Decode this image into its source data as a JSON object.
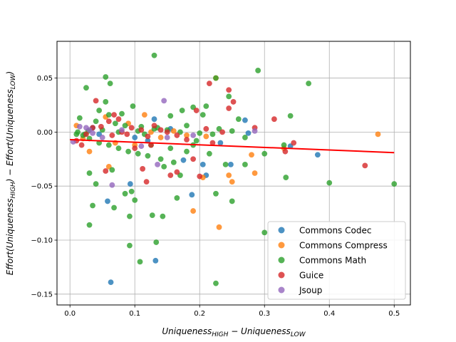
{
  "chart_data": {
    "type": "scatter",
    "title": "",
    "xlabel": {
      "base": "Uniqueness",
      "sub1": "HIGH",
      "mid": " − Uniqueness",
      "sub2": "LOW"
    },
    "ylabel": {
      "p1": "Effort(Uniqueness",
      "sub1": "HIGH",
      "p2": ") − Effort(Uniqueness",
      "sub2": "LOW",
      "p3": ")"
    },
    "xlim": [
      -0.02,
      0.525
    ],
    "ylim": [
      -0.16,
      0.084
    ],
    "xticks": [
      0.0,
      0.1,
      0.2,
      0.3,
      0.4,
      0.5
    ],
    "xtick_labels": [
      "0.0",
      "0.1",
      "0.2",
      "0.3",
      "0.4",
      "0.5"
    ],
    "yticks": [
      -0.15,
      -0.1,
      -0.05,
      0.0,
      0.05
    ],
    "ytick_labels": [
      "−0.15",
      "−0.10",
      "−0.05",
      "0.00",
      "0.05"
    ],
    "grid": true,
    "legend_position": "lower-right",
    "regression_line": {
      "color": "#ff0000",
      "x": [
        0.0,
        0.5
      ],
      "y": [
        -0.007,
        -0.019
      ]
    },
    "series": [
      {
        "name": "Commons Codec",
        "color": "#1f77b4",
        "points": [
          [
            0.058,
            -0.064
          ],
          [
            0.063,
            -0.139
          ],
          [
            0.093,
            -0.048
          ],
          [
            0.132,
            -0.119
          ],
          [
            0.13,
            0.012
          ],
          [
            0.188,
            -0.058
          ],
          [
            0.21,
            -0.04
          ],
          [
            0.232,
            -0.01
          ],
          [
            0.248,
            -0.03
          ],
          [
            0.27,
            0.011
          ],
          [
            0.275,
            -0.001
          ],
          [
            0.34,
            -0.013
          ],
          [
            0.382,
            -0.021
          ],
          [
            0.045,
            -0.002
          ],
          [
            0.1,
            -0.005
          ],
          [
            0.155,
            0.003
          ],
          [
            0.175,
            -0.026
          ],
          [
            0.205,
            -0.03
          ],
          [
            0.035,
            0.004
          ],
          [
            0.12,
            -0.008
          ]
        ]
      },
      {
        "name": "Commons Compress",
        "color": "#ff7f0e",
        "points": [
          [
            0.01,
            0.006
          ],
          [
            0.02,
            -0.006
          ],
          [
            0.03,
            -0.018
          ],
          [
            0.055,
            0.014
          ],
          [
            0.07,
            -0.01
          ],
          [
            0.09,
            0.008
          ],
          [
            0.1,
            -0.012
          ],
          [
            0.115,
            0.016
          ],
          [
            0.14,
            -0.005
          ],
          [
            0.16,
            0.001
          ],
          [
            0.18,
            -0.003
          ],
          [
            0.19,
            -0.073
          ],
          [
            0.205,
            -0.042
          ],
          [
            0.225,
            0.05
          ],
          [
            0.23,
            -0.088
          ],
          [
            0.245,
            -0.04
          ],
          [
            0.25,
            -0.046
          ],
          [
            0.28,
            -0.021
          ],
          [
            0.285,
            -0.038
          ],
          [
            0.33,
            -0.015
          ],
          [
            0.475,
            -0.002
          ],
          [
            0.06,
            -0.032
          ],
          [
            0.125,
            0.0
          ],
          [
            0.21,
            -0.004
          ]
        ]
      },
      {
        "name": "Commons Math",
        "color": "#2ca02c",
        "points": [
          [
            0.13,
            0.071
          ],
          [
            0.055,
            0.051
          ],
          [
            0.29,
            0.057
          ],
          [
            0.368,
            0.045
          ],
          [
            0.025,
            0.041
          ],
          [
            0.062,
            0.045
          ],
          [
            0.225,
            0.05
          ],
          [
            0.245,
            0.033
          ],
          [
            0.21,
            0.024
          ],
          [
            0.055,
            0.028
          ],
          [
            0.097,
            0.024
          ],
          [
            0.19,
            0.023
          ],
          [
            0.173,
            0.02
          ],
          [
            0.34,
            0.015
          ],
          [
            0.155,
            0.015
          ],
          [
            0.015,
            0.013
          ],
          [
            0.04,
            0.01
          ],
          [
            0.07,
            0.008
          ],
          [
            0.085,
            0.006
          ],
          [
            0.11,
            0.005
          ],
          [
            0.13,
            0.003
          ],
          [
            0.15,
            0.002
          ],
          [
            0.17,
            0.0
          ],
          [
            0.2,
            -0.001
          ],
          [
            0.22,
            -0.002
          ],
          [
            0.25,
            0.001
          ],
          [
            0.27,
            -0.005
          ],
          [
            0.01,
            -0.002
          ],
          [
            0.02,
            -0.003
          ],
          [
            0.03,
            -0.006
          ],
          [
            0.045,
            -0.01
          ],
          [
            0.06,
            -0.012
          ],
          [
            0.075,
            -0.015
          ],
          [
            0.09,
            -0.018
          ],
          [
            0.105,
            -0.02
          ],
          [
            0.12,
            -0.022
          ],
          [
            0.14,
            -0.025
          ],
          [
            0.16,
            -0.028
          ],
          [
            0.18,
            -0.018
          ],
          [
            0.215,
            -0.02
          ],
          [
            0.24,
            -0.03
          ],
          [
            0.27,
            -0.03
          ],
          [
            0.3,
            -0.02
          ],
          [
            0.33,
            -0.012
          ],
          [
            0.03,
            -0.038
          ],
          [
            0.04,
            -0.048
          ],
          [
            0.065,
            -0.035
          ],
          [
            0.085,
            -0.057
          ],
          [
            0.1,
            -0.063
          ],
          [
            0.095,
            -0.055
          ],
          [
            0.03,
            -0.086
          ],
          [
            0.035,
            -0.068
          ],
          [
            0.068,
            -0.07
          ],
          [
            0.092,
            -0.078
          ],
          [
            0.127,
            -0.077
          ],
          [
            0.143,
            -0.078
          ],
          [
            0.092,
            -0.105
          ],
          [
            0.133,
            -0.102
          ],
          [
            0.108,
            -0.12
          ],
          [
            0.225,
            -0.14
          ],
          [
            0.25,
            -0.064
          ],
          [
            0.165,
            -0.061
          ],
          [
            0.225,
            -0.057
          ],
          [
            0.333,
            -0.042
          ],
          [
            0.4,
            -0.047
          ],
          [
            0.5,
            -0.048
          ],
          [
            0.3,
            -0.093
          ],
          [
            0.023,
            -0.002
          ],
          [
            0.028,
            0.001
          ],
          [
            0.012,
            0.0
          ],
          [
            0.05,
            0.002
          ],
          [
            0.075,
            0.0
          ],
          [
            0.115,
            -0.002
          ],
          [
            0.135,
            0.004
          ],
          [
            0.18,
            0.006
          ],
          [
            0.195,
            -0.008
          ],
          [
            0.23,
            0.003
          ],
          [
            0.26,
            0.012
          ],
          [
            0.205,
            0.016
          ],
          [
            0.045,
            0.02
          ],
          [
            0.08,
            0.017
          ],
          [
            0.125,
            -0.012
          ],
          [
            0.145,
            -0.032
          ],
          [
            0.17,
            -0.04
          ],
          [
            0.19,
            -0.012
          ],
          [
            0.155,
            -0.015
          ],
          [
            0.06,
            0.016
          ],
          [
            0.105,
            0.001
          ]
        ]
      },
      {
        "name": "Guice",
        "color": "#d62728",
        "points": [
          [
            0.04,
            0.029
          ],
          [
            0.068,
            0.016
          ],
          [
            0.075,
            0.012
          ],
          [
            0.095,
            0.004
          ],
          [
            0.11,
            0.002
          ],
          [
            0.12,
            -0.004
          ],
          [
            0.13,
            0.006
          ],
          [
            0.14,
            0.002
          ],
          [
            0.15,
            0.0
          ],
          [
            0.165,
            -0.003
          ],
          [
            0.18,
            -0.007
          ],
          [
            0.195,
            0.02
          ],
          [
            0.21,
            0.003
          ],
          [
            0.215,
            0.045
          ],
          [
            0.235,
            0.0
          ],
          [
            0.245,
            0.039
          ],
          [
            0.252,
            0.028
          ],
          [
            0.245,
            0.022
          ],
          [
            0.285,
            0.004
          ],
          [
            0.315,
            0.012
          ],
          [
            0.332,
            -0.018
          ],
          [
            0.345,
            -0.01
          ],
          [
            0.455,
            -0.031
          ],
          [
            0.055,
            -0.036
          ],
          [
            0.06,
            0.01
          ],
          [
            0.048,
            0.005
          ],
          [
            0.088,
            -0.002
          ],
          [
            0.112,
            -0.034
          ],
          [
            0.118,
            -0.046
          ],
          [
            0.125,
            -0.012
          ],
          [
            0.155,
            -0.04
          ],
          [
            0.165,
            -0.037
          ],
          [
            0.19,
            -0.025
          ],
          [
            0.2,
            -0.041
          ],
          [
            0.22,
            -0.01
          ],
          [
            0.01,
            -0.008
          ],
          [
            0.018,
            -0.012
          ],
          [
            0.025,
            -0.002
          ],
          [
            0.035,
            0.004
          ],
          [
            0.08,
            0.0
          ],
          [
            0.1,
            -0.015
          ],
          [
            0.065,
            -0.003
          ]
        ]
      },
      {
        "name": "Jsoup",
        "color": "#9467bd",
        "points": [
          [
            0.145,
            0.029
          ],
          [
            0.015,
            0.005
          ],
          [
            0.025,
            0.004
          ],
          [
            0.035,
            -0.001
          ],
          [
            0.05,
            -0.005
          ],
          [
            0.065,
            -0.049
          ],
          [
            0.08,
            0.002
          ],
          [
            0.11,
            -0.013
          ],
          [
            0.19,
            -0.003
          ],
          [
            0.285,
            0.001
          ],
          [
            0.135,
            -0.03
          ],
          [
            0.005,
            -0.009
          ],
          [
            0.15,
            -0.005
          ],
          [
            0.03,
            0.002
          ]
        ]
      }
    ]
  }
}
